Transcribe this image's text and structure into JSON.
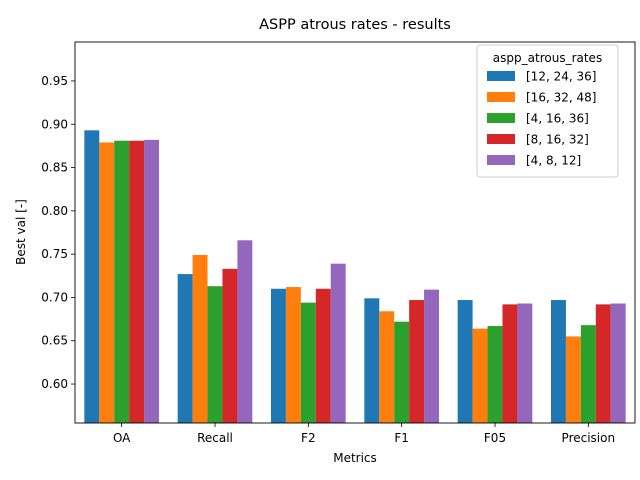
{
  "chart_data": {
    "type": "bar",
    "title": "ASPP atrous rates - results",
    "xlabel": "Metrics",
    "ylabel": "Best val [-]",
    "ylim": [
      0.555,
      0.995
    ],
    "yticks": [
      0.6,
      0.65,
      0.7,
      0.75,
      0.8,
      0.85,
      0.9,
      0.95
    ],
    "ytick_labels": [
      "0.60",
      "0.65",
      "0.70",
      "0.75",
      "0.80",
      "0.85",
      "0.90",
      "0.95"
    ],
    "categories": [
      "OA",
      "Recall",
      "F2",
      "F1",
      "F05",
      "Precision"
    ],
    "legend": {
      "title": "aspp_atrous_rates",
      "placement": "top-right"
    },
    "grid": false,
    "series": [
      {
        "name": "[12, 24, 36]",
        "color": "#1f77b4",
        "values": [
          0.893,
          0.727,
          0.71,
          0.699,
          0.697,
          0.697
        ]
      },
      {
        "name": "[16, 32, 48]",
        "color": "#ff7f0e",
        "values": [
          0.879,
          0.749,
          0.712,
          0.684,
          0.664,
          0.655
        ]
      },
      {
        "name": "[4, 16, 36]",
        "color": "#2ca02c",
        "values": [
          0.881,
          0.713,
          0.694,
          0.672,
          0.667,
          0.668
        ]
      },
      {
        "name": "[8, 16, 32]",
        "color": "#d62728",
        "values": [
          0.881,
          0.733,
          0.71,
          0.697,
          0.692,
          0.692
        ]
      },
      {
        "name": "[4, 8, 12]",
        "color": "#9467bd",
        "values": [
          0.882,
          0.766,
          0.739,
          0.709,
          0.693,
          0.693
        ]
      }
    ]
  }
}
